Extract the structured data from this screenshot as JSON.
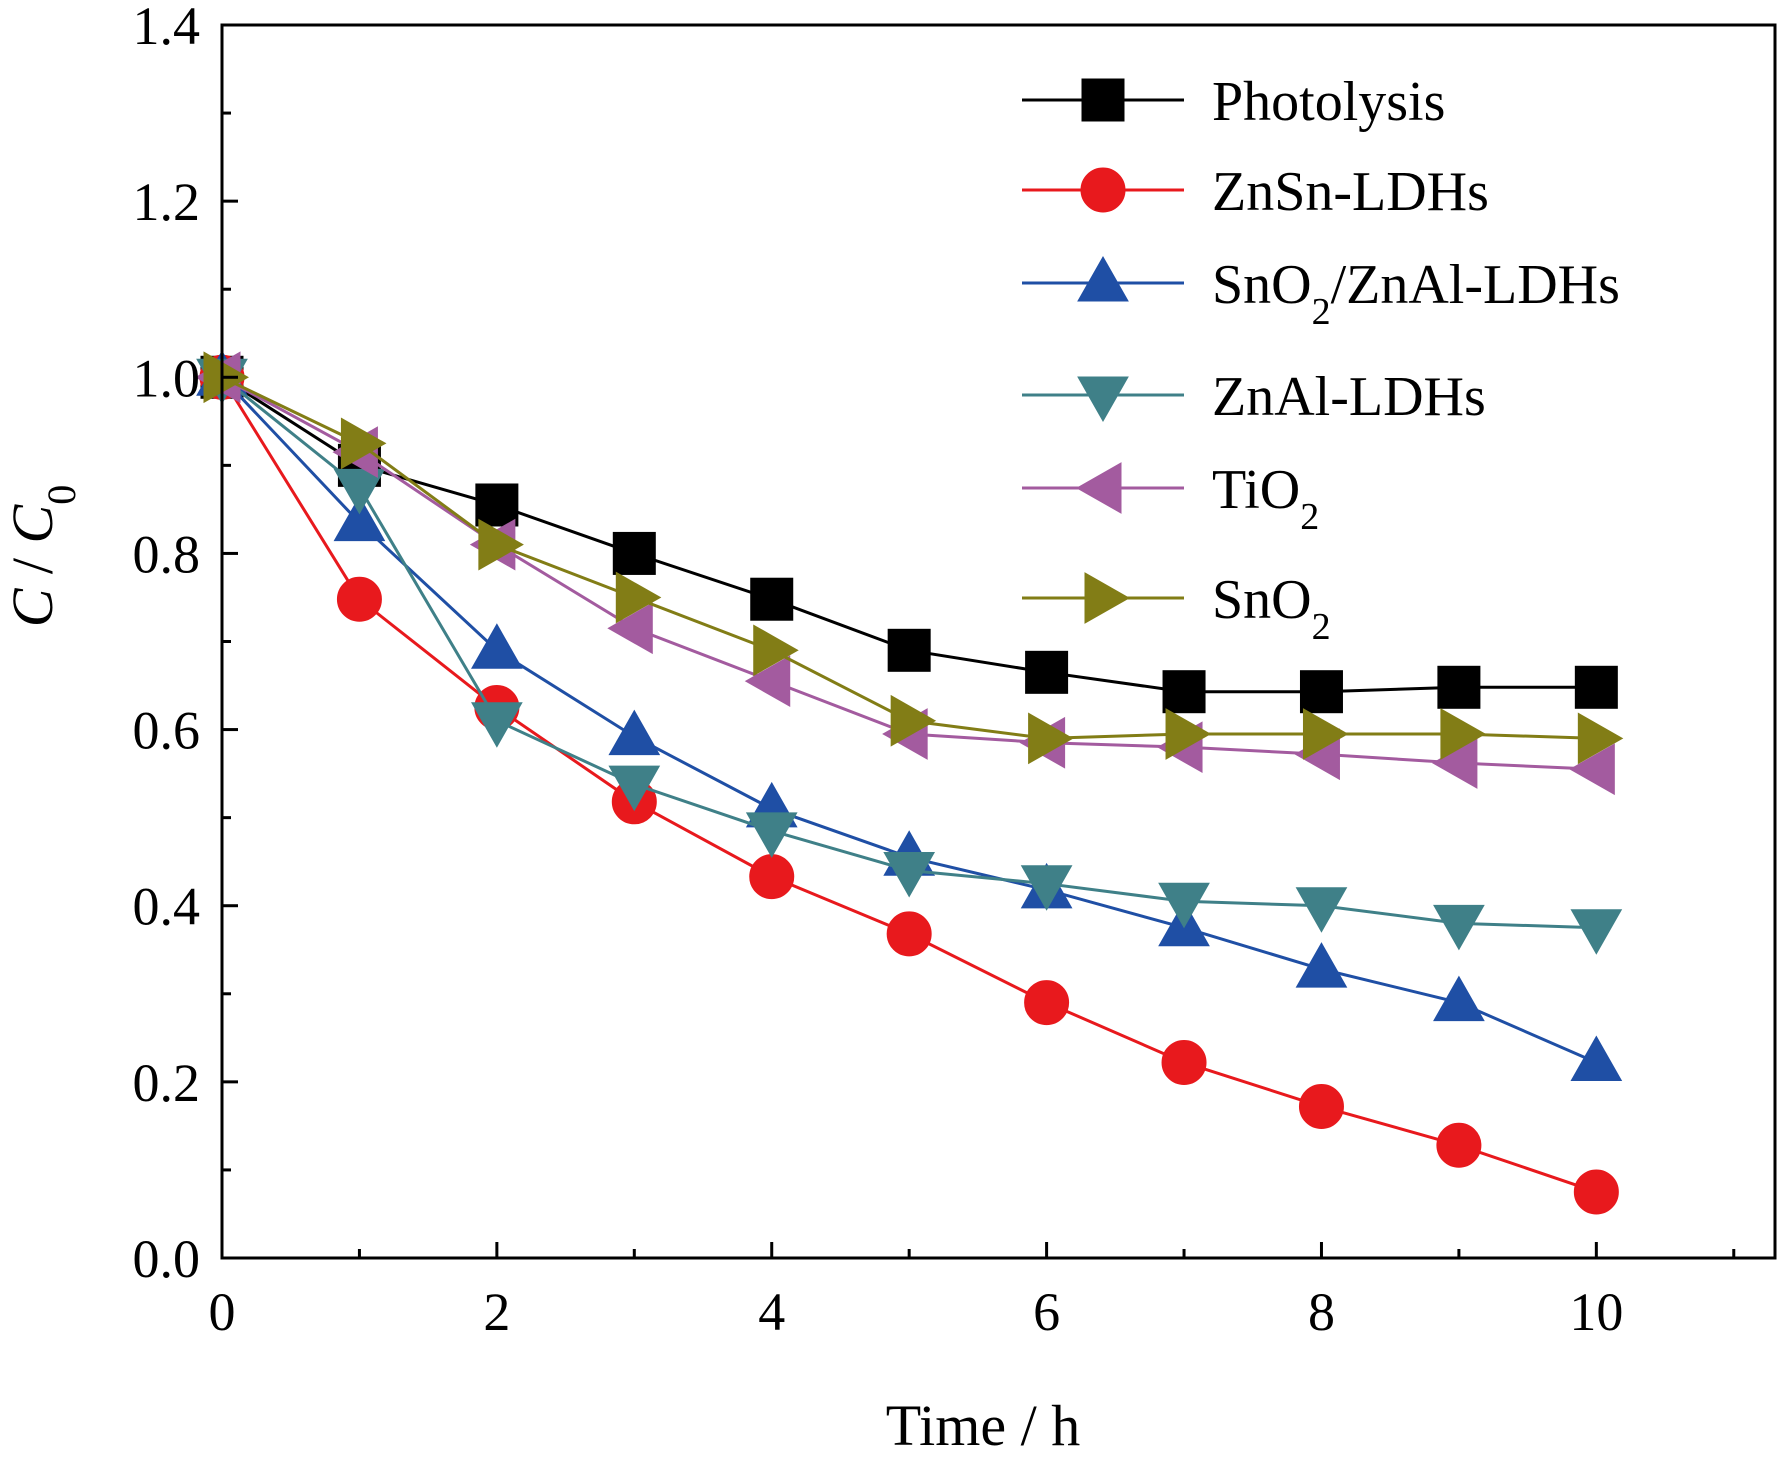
{
  "chart_data": {
    "type": "line",
    "xlabel": "Time / h",
    "ylabel": {
      "main": "C",
      "sep": " / ",
      "sub_main": "C",
      "sub": "0"
    },
    "xlim": [
      0,
      11.3
    ],
    "ylim": [
      0,
      1.4
    ],
    "xticks_major": [
      0,
      2,
      4,
      6,
      8,
      10
    ],
    "xticks_minor": [
      1,
      3,
      5,
      7,
      9,
      11
    ],
    "yticks_major": [
      0.0,
      0.2,
      0.4,
      0.6,
      0.8,
      1.0,
      1.2,
      1.4
    ],
    "yticks_minor": [
      0.1,
      0.3,
      0.5,
      0.7,
      0.9,
      1.1,
      1.3
    ],
    "xtick_labels": [
      "0",
      "2",
      "4",
      "6",
      "8",
      "10"
    ],
    "ytick_labels": [
      "0.0",
      "0.2",
      "0.4",
      "0.6",
      "0.8",
      "1.0",
      "1.2",
      "1.4"
    ],
    "grid": false,
    "legend_position": "top-right",
    "x": [
      0,
      1,
      2,
      3,
      4,
      5,
      6,
      7,
      8,
      9,
      10
    ],
    "series": [
      {
        "name": "Photolysis",
        "label_main": "Photolysis",
        "label_sub": "",
        "label_tail": "",
        "color": "#000000",
        "marker": "square",
        "values": [
          1.0,
          0.9,
          0.855,
          0.8,
          0.748,
          0.69,
          0.665,
          0.643,
          0.643,
          0.648,
          0.648
        ]
      },
      {
        "name": "ZnSn-LDHs",
        "label_main": "ZnSn-LDHs",
        "label_sub": "",
        "label_tail": "",
        "color": "#e8191d",
        "marker": "circle",
        "values": [
          1.0,
          0.748,
          0.625,
          0.518,
          0.433,
          0.368,
          0.29,
          0.222,
          0.172,
          0.128,
          0.075
        ]
      },
      {
        "name": "SnO2/ZnAl-LDHs",
        "label_main": "SnO",
        "label_sub": "2",
        "label_tail": "/ZnAl-LDHs",
        "color": "#1f4fa5",
        "marker": "triangle-up",
        "values": [
          1.0,
          0.835,
          0.69,
          0.592,
          0.51,
          0.455,
          0.418,
          0.375,
          0.328,
          0.29,
          0.222
        ]
      },
      {
        "name": "ZnAl-LDHs",
        "label_main": "ZnAl-LDHs",
        "label_sub": "",
        "label_tail": "",
        "color": "#3f8088",
        "marker": "triangle-down",
        "values": [
          1.0,
          0.875,
          0.61,
          0.538,
          0.485,
          0.44,
          0.425,
          0.405,
          0.4,
          0.38,
          0.375
        ]
      },
      {
        "name": "TiO2",
        "label_main": "TiO",
        "label_sub": "2",
        "label_tail": "",
        "color": "#a35b9f",
        "marker": "triangle-left",
        "values": [
          1.0,
          0.915,
          0.81,
          0.715,
          0.655,
          0.595,
          0.585,
          0.58,
          0.572,
          0.562,
          0.555
        ]
      },
      {
        "name": "SnO2",
        "label_main": "SnO",
        "label_sub": "2",
        "label_tail": "",
        "color": "#827d16",
        "marker": "triangle-right",
        "values": [
          1.0,
          0.925,
          0.81,
          0.75,
          0.69,
          0.61,
          0.59,
          0.595,
          0.595,
          0.595,
          0.59
        ]
      }
    ]
  }
}
